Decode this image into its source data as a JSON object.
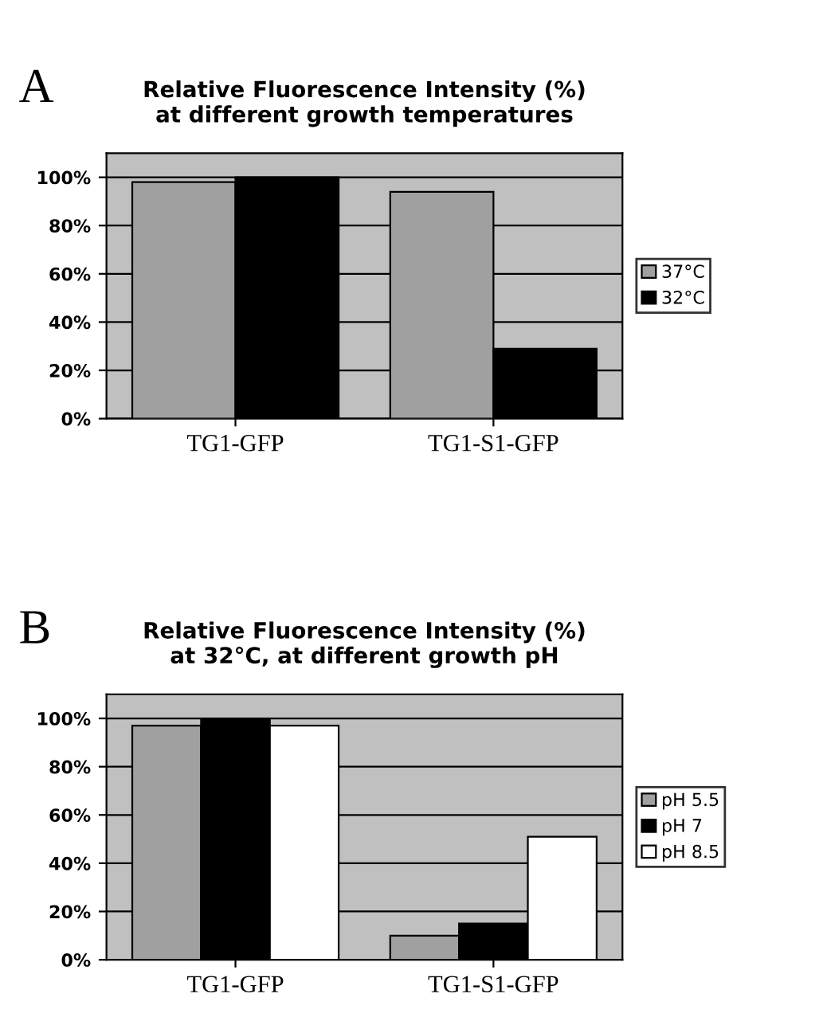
{
  "chart_data": [
    {
      "type": "bar",
      "title": "Relative Fluorescence Intensity (%)\nat different growth temperatures",
      "annotations": [
        "A"
      ],
      "categories": [
        "TG1-GFP",
        "TG1-S1-GFP"
      ],
      "series": [
        {
          "name": "37°C",
          "color": "#a0a0a0",
          "values": [
            98,
            94
          ]
        },
        {
          "name": "32°C",
          "color": "#000000",
          "values": [
            100,
            29
          ]
        }
      ],
      "ylim": [
        0,
        110
      ],
      "yticks": [
        {
          "value": 0,
          "label": "0%"
        },
        {
          "value": 20,
          "label": "20%"
        },
        {
          "value": 40,
          "label": "40%"
        },
        {
          "value": 60,
          "label": "60%"
        },
        {
          "value": 80,
          "label": "80%"
        },
        {
          "value": 100,
          "label": "100%"
        }
      ],
      "grid": "y",
      "legend": "right"
    },
    {
      "type": "bar",
      "title": "Relative Fluorescence Intensity (%)\nat 32°C, at different growth pH",
      "annotations": [
        "B"
      ],
      "categories": [
        "TG1-GFP",
        "TG1-S1-GFP"
      ],
      "series": [
        {
          "name": "pH 5.5",
          "color": "#a0a0a0",
          "values": [
            97,
            10
          ]
        },
        {
          "name": "pH 7",
          "color": "#000000",
          "values": [
            100,
            15
          ]
        },
        {
          "name": "pH 8.5",
          "color": "#ffffff",
          "values": [
            97,
            51
          ]
        }
      ],
      "ylim": [
        0,
        110
      ],
      "yticks": [
        {
          "value": 0,
          "label": "0%"
        },
        {
          "value": 20,
          "label": "20%"
        },
        {
          "value": 40,
          "label": "40%"
        },
        {
          "value": 60,
          "label": "60%"
        },
        {
          "value": 80,
          "label": "80%"
        },
        {
          "value": 100,
          "label": "100%"
        }
      ],
      "grid": "y",
      "legend": "right"
    }
  ]
}
